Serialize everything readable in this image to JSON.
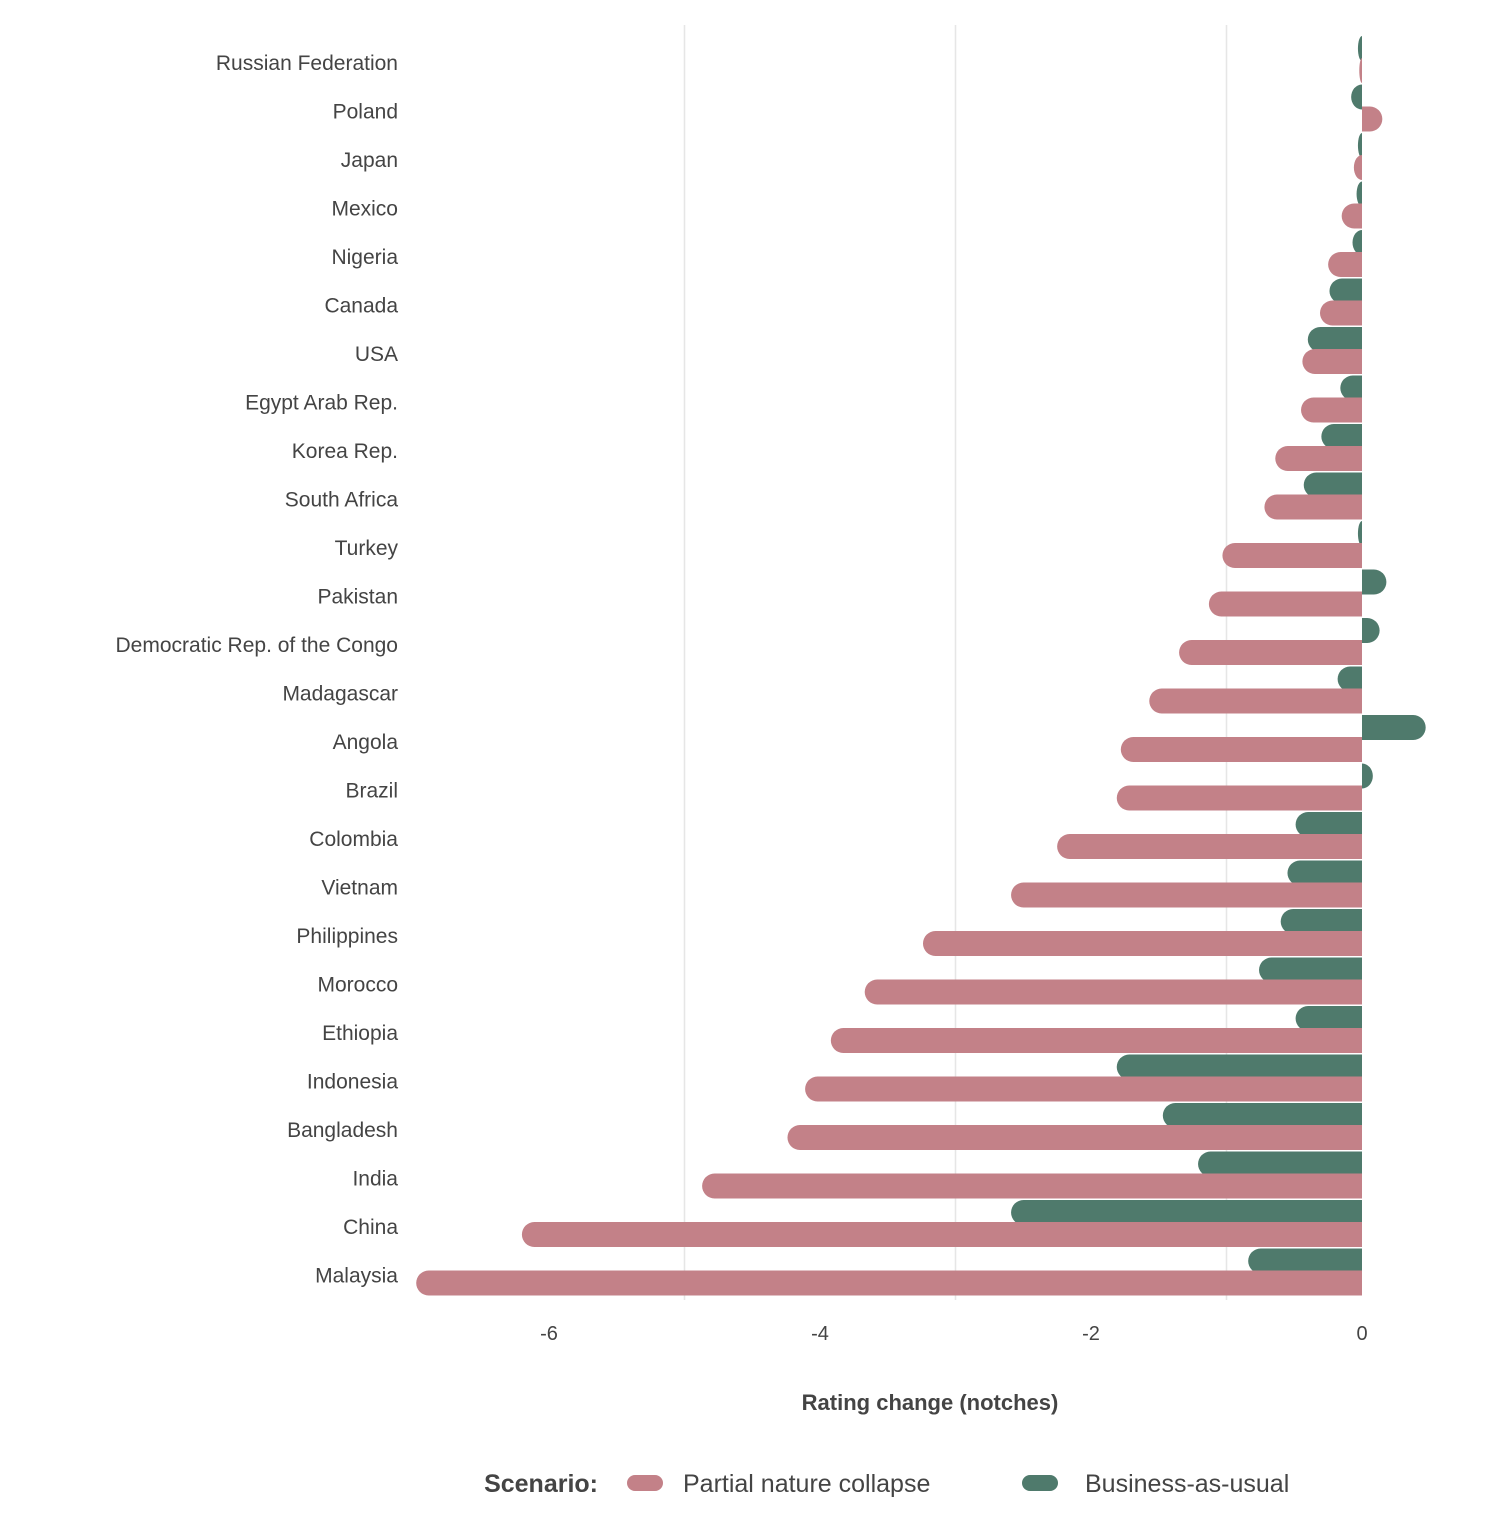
{
  "chart_data": {
    "type": "bar",
    "orientation": "horizontal",
    "xlabel": "Rating change (notches)",
    "xlim": [
      -6.9,
      0.55
    ],
    "xticks": [
      -6,
      -4,
      -2,
      0
    ],
    "xtick_labels": [
      "-6",
      "-4",
      "-2",
      "0"
    ],
    "grid": true,
    "legend_title": "Scenario:",
    "legend_position": "bottom",
    "categories": [
      "Russian Federation",
      "Poland",
      "Japan",
      "Mexico",
      "Nigeria",
      "Canada",
      "USA",
      "Egypt Arab Rep.",
      "Korea Rep.",
      "South Africa",
      "Turkey",
      "Pakistan",
      "Democratic Rep. of the Congo",
      "Madagascar",
      "Angola",
      "Brazil",
      "Colombia",
      "Vietnam",
      "Philippines",
      "Morocco",
      "Ethiopia",
      "Indonesia",
      "Bangladesh",
      "India",
      "China",
      "Malaysia"
    ],
    "series": [
      {
        "name": "Business-as-usual",
        "color": "#4f7a6c",
        "values": [
          -0.03,
          -0.08,
          -0.03,
          -0.04,
          -0.07,
          -0.24,
          -0.4,
          -0.16,
          -0.3,
          -0.43,
          -0.03,
          0.18,
          0.13,
          -0.18,
          0.47,
          0.08,
          -0.49,
          -0.55,
          -0.6,
          -0.76,
          -0.49,
          -1.81,
          -1.47,
          -1.21,
          -2.59,
          -0.84
        ]
      },
      {
        "name": "Partial nature collapse",
        "color": "#c38188",
        "values": [
          -0.02,
          0.15,
          -0.06,
          -0.15,
          -0.25,
          -0.31,
          -0.44,
          -0.45,
          -0.64,
          -0.72,
          -1.03,
          -1.13,
          -1.35,
          -1.57,
          -1.78,
          -1.81,
          -2.25,
          -2.59,
          -3.24,
          -3.67,
          -3.92,
          -4.11,
          -4.24,
          -4.87,
          -6.2,
          -6.98
        ]
      }
    ]
  }
}
